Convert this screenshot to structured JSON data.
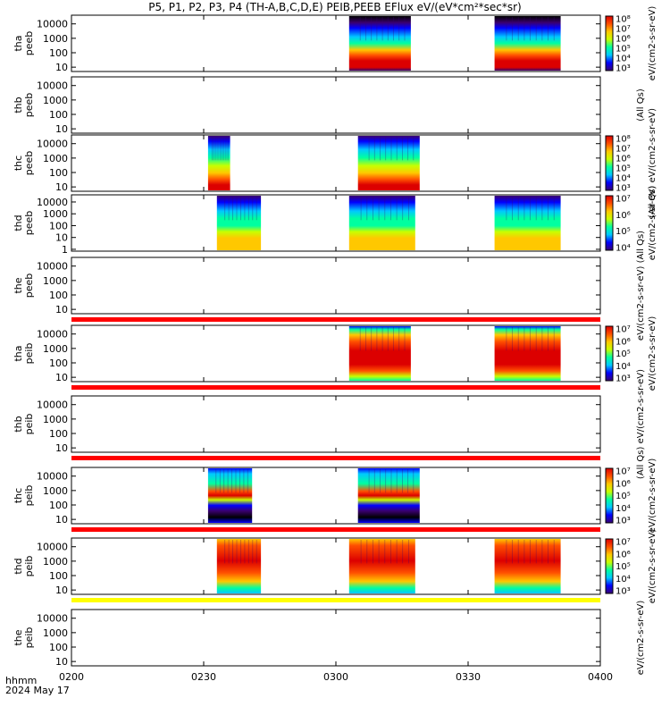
{
  "title": "P5, P1, P2, P3, P4 (TH-A,B,C,D,E) PEIB,PEEB EFlux eV/(eV*cm²*sec*sr)",
  "time_label_line1": "hhmm",
  "time_label_line2": "2024 May 17",
  "colors": {
    "flag_red": "#ff0000",
    "flag_yellow": "#ffff00",
    "frame": "#000000",
    "colormap": [
      "#000000",
      "#3a0070",
      "#0000ff",
      "#00c8ff",
      "#00ffa0",
      "#c8ff00",
      "#ffc800",
      "#ff5000",
      "#dc0000"
    ]
  },
  "chart_data": {
    "type": "heatmap",
    "x_axis": {
      "label": "hhmm",
      "date": "2024 May 17",
      "range": [
        "0200",
        "0400"
      ],
      "ticks": [
        "0200",
        "0230",
        "0300",
        "0330",
        "0400"
      ]
    },
    "y_scale": "log",
    "panels": [
      {
        "name": "thapeeb",
        "ylabel": [
          "tha",
          "peeb"
        ],
        "yticks": [
          "10",
          "100",
          "1000",
          "10000"
        ],
        "yrange": [
          5,
          40000
        ],
        "colorbar": {
          "ticks": [
            "10⁸",
            "10⁷",
            "10⁶",
            "10⁵",
            "10⁴",
            "10³"
          ],
          "label": "eV/(cm2-s-sr-eV)"
        },
        "data_intervals": [
          [
            "0303",
            "0317"
          ],
          [
            "0336",
            "0351"
          ]
        ],
        "profile": "electron",
        "flag": ""
      },
      {
        "name": "thbpeeb",
        "ylabel": [
          "thb",
          "peeb"
        ],
        "yticks": [
          "10",
          "100",
          "1000",
          "10000"
        ],
        "yrange": [
          5,
          40000
        ],
        "colorbar": {
          "ticks": [],
          "label": "(All Qs)"
        },
        "data_intervals": [],
        "profile": "electron",
        "flag": ""
      },
      {
        "name": "thcpeeb",
        "ylabel": [
          "thc",
          "peeb"
        ],
        "yticks": [
          "10",
          "100",
          "1000",
          "10000"
        ],
        "yrange": [
          5,
          40000
        ],
        "colorbar": {
          "ticks": [
            "10⁸",
            "10⁷",
            "10⁶",
            "10⁵",
            "10⁴",
            "10³"
          ],
          "label": "(All Qs) eV/(cm2-s-sr-eV)"
        },
        "data_intervals": [
          [
            "0231",
            "0236"
          ],
          [
            "0305",
            "0319"
          ]
        ],
        "profile": "electron_c",
        "flag": ""
      },
      {
        "name": "thdpeeb",
        "ylabel": [
          "thd",
          "peeb"
        ],
        "yticks": [
          "1",
          "10",
          "100",
          "1000",
          "10000"
        ],
        "yrange": [
          0.7,
          40000
        ],
        "colorbar": {
          "ticks": [
            "10⁷",
            "10⁶",
            "10⁵",
            "10⁴"
          ],
          "label": "eV/(cm2-s-sr-eV)"
        },
        "data_intervals": [
          [
            "0233",
            "0243"
          ],
          [
            "0303",
            "0318"
          ],
          [
            "0336",
            "0351"
          ]
        ],
        "profile": "electron_d",
        "flag": ""
      },
      {
        "name": "thepeeb",
        "ylabel": [
          "the",
          "peeb"
        ],
        "yticks": [
          "10",
          "100",
          "1000",
          "10000"
        ],
        "yrange": [
          5,
          40000
        ],
        "colorbar": {
          "ticks": [],
          "label": "eV/(cm2-s-sr-eV) (All Qs)"
        },
        "data_intervals": [],
        "profile": "electron",
        "flag": "red"
      },
      {
        "name": "thapeib",
        "ylabel": [
          "tha",
          "peib"
        ],
        "yticks": [
          "10",
          "100",
          "1000",
          "10000"
        ],
        "yrange": [
          5,
          40000
        ],
        "colorbar": {
          "ticks": [
            "10⁷",
            "10⁶",
            "10⁵",
            "10⁴",
            "10³"
          ],
          "label": "eV/(cm2-s-sr-eV)"
        },
        "data_intervals": [
          [
            "0303",
            "0317"
          ],
          [
            "0336",
            "0351"
          ]
        ],
        "profile": "ion",
        "flag": "red"
      },
      {
        "name": "thbpeib",
        "ylabel": [
          "thb",
          "peib"
        ],
        "yticks": [
          "10",
          "100",
          "1000",
          "10000"
        ],
        "yrange": [
          5,
          40000
        ],
        "colorbar": {
          "ticks": [],
          "label": "(All Qs) eV/(cm2-s-sr-eV)"
        },
        "data_intervals": [],
        "profile": "ion",
        "flag": "red"
      },
      {
        "name": "thcpeib",
        "ylabel": [
          "thc",
          "peib"
        ],
        "yticks": [
          "10",
          "100",
          "1000",
          "10000"
        ],
        "yrange": [
          5,
          40000
        ],
        "colorbar": {
          "ticks": [
            "10⁷",
            "10⁶",
            "10⁵",
            "10⁴",
            "10³"
          ],
          "label": "eV/(cm2-s-sr-eV)"
        },
        "data_intervals": [
          [
            "0231",
            "0241"
          ],
          [
            "0305",
            "0319"
          ]
        ],
        "profile": "ion_c",
        "flag": "red"
      },
      {
        "name": "thdpeib",
        "ylabel": [
          "thd",
          "peib"
        ],
        "yticks": [
          "10",
          "100",
          "1000",
          "10000"
        ],
        "yrange": [
          5,
          40000
        ],
        "colorbar": {
          "ticks": [
            "10⁷",
            "10⁶",
            "10⁵",
            "10⁴",
            "10³"
          ],
          "label": "eV/(cm2-s-sr-eV)"
        },
        "data_intervals": [
          [
            "0233",
            "0243"
          ],
          [
            "0303",
            "0318"
          ],
          [
            "0336",
            "0351"
          ]
        ],
        "profile": "ion_d",
        "flag": "yellow"
      },
      {
        "name": "thepeib",
        "ylabel": [
          "the",
          "peib"
        ],
        "yticks": [
          "10",
          "100",
          "1000",
          "10000"
        ],
        "yrange": [
          5,
          40000
        ],
        "colorbar": {
          "ticks": [],
          "label": "eV/(cm2-s-sr-eV)"
        },
        "data_intervals": [],
        "profile": "ion",
        "flag": ""
      }
    ]
  }
}
